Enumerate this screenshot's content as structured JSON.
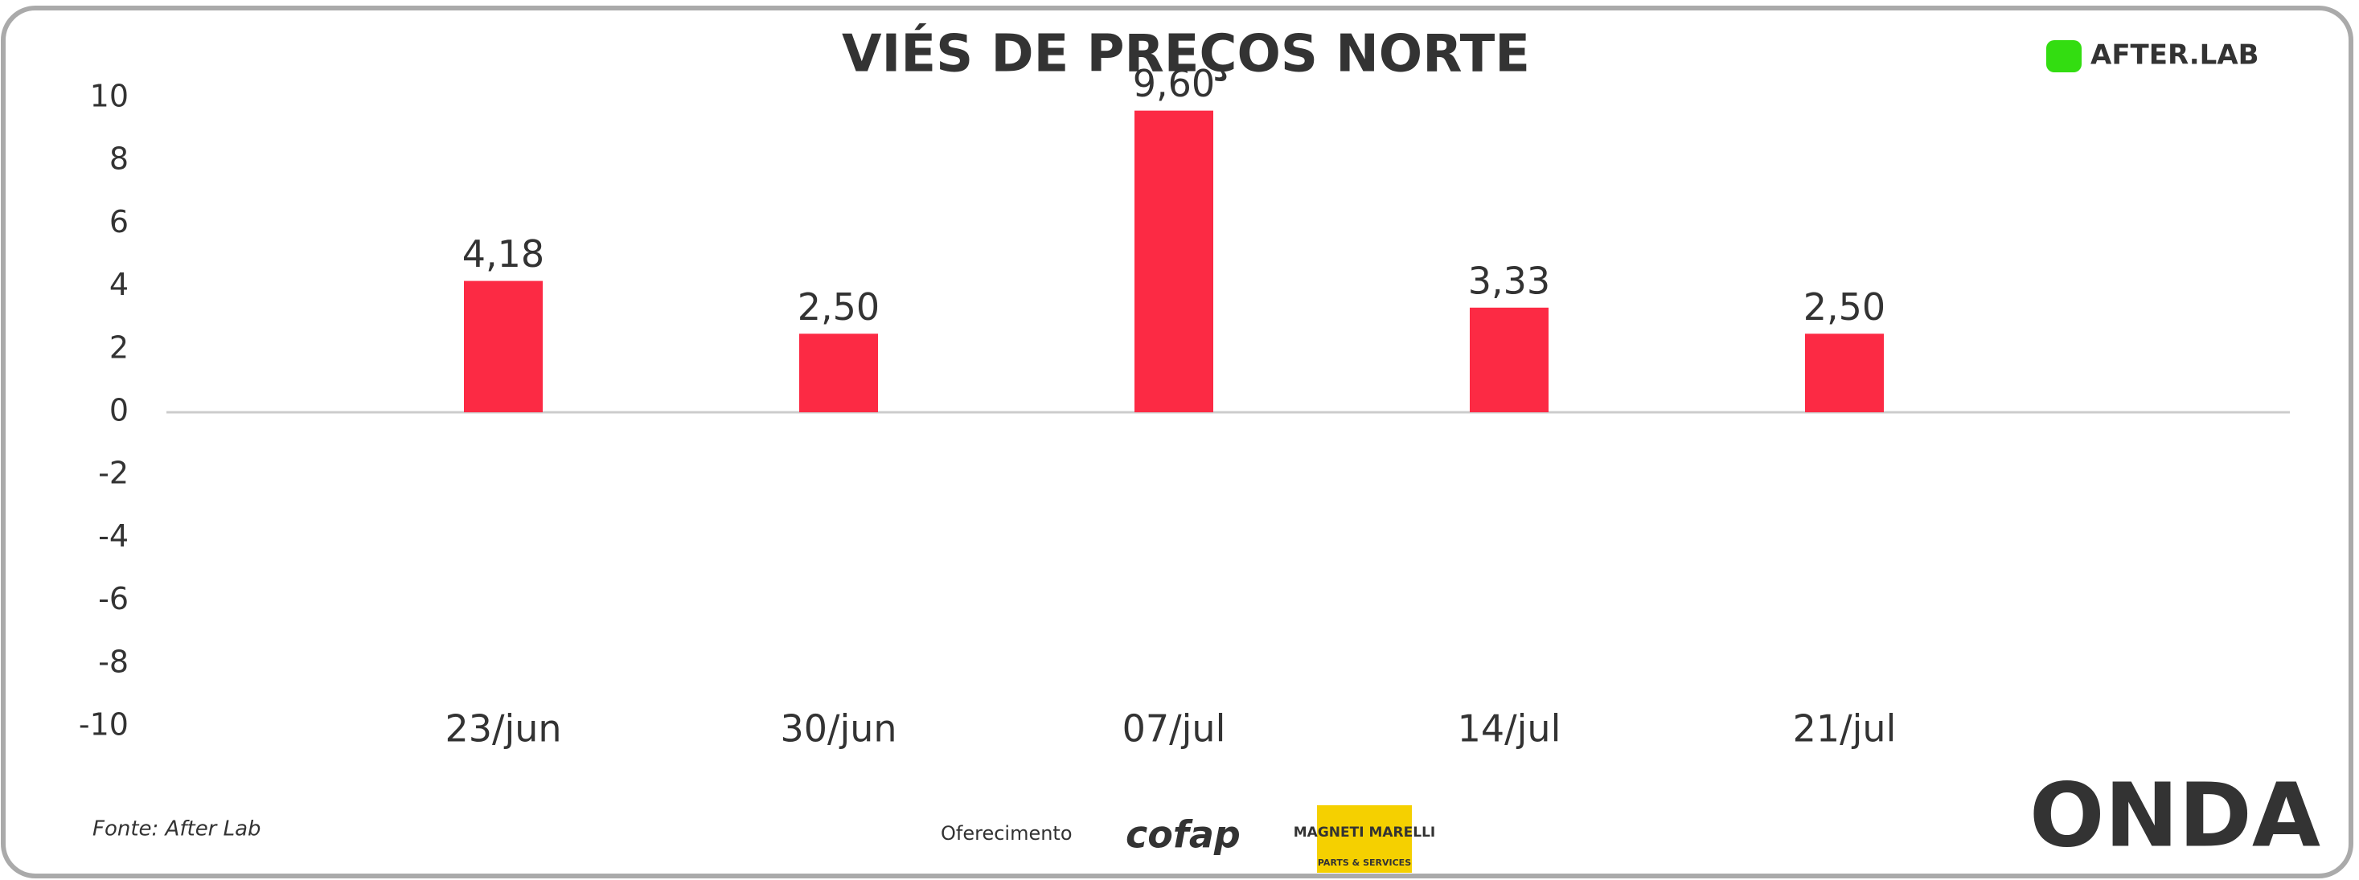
{
  "chart_data": {
    "type": "bar",
    "title": "VIÉS DE PREÇOS NORTE",
    "categories": [
      "23/jun",
      "30/jun",
      "07/jul",
      "14/jul",
      "21/jul"
    ],
    "values": [
      4.18,
      2.5,
      9.6,
      3.33,
      2.5
    ],
    "value_labels": [
      "4,18",
      "2,50",
      "9,60",
      "3,33",
      "2,50"
    ],
    "color": "#fc2a44",
    "ylim": [
      -10,
      10
    ],
    "yticks": [
      -10,
      -8,
      -6,
      -4,
      -2,
      0,
      2,
      4,
      6,
      8,
      10
    ]
  },
  "brand": "AFTER.LAB",
  "source": "Fonte: After Lab",
  "sponsor_label": "Oferecimento",
  "sponsors": [
    "cofap",
    "MAGNETI MARELLI",
    "PARTS & SERVICES"
  ],
  "footer_logo": "ONDA"
}
